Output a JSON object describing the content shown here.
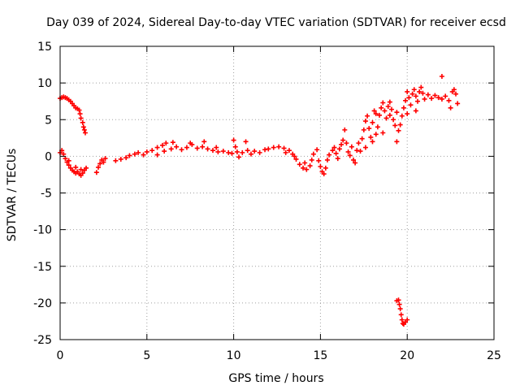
{
  "chart_data": {
    "type": "scatter",
    "title": "Day 039 of 2024, Sidereal Day-to-day VTEC variation (SDTVAR) for receiver ecsd",
    "xlabel": "GPS time / hours",
    "ylabel": "SDTVAR / TECUs",
    "xlim": [
      0,
      25
    ],
    "ylim": [
      -25,
      15
    ],
    "xticks": [
      0,
      5,
      10,
      15,
      20,
      25
    ],
    "yticks": [
      -25,
      -20,
      -15,
      -10,
      -5,
      0,
      5,
      10,
      15
    ],
    "grid": true,
    "marker": "+",
    "series": [
      {
        "name": "SDTVAR",
        "color": "#ff0000",
        "points": [
          [
            0.0,
            7.9
          ],
          [
            0.1,
            8.0
          ],
          [
            0.2,
            8.1
          ],
          [
            0.3,
            8.0
          ],
          [
            0.4,
            7.9
          ],
          [
            0.5,
            7.7
          ],
          [
            0.6,
            7.5
          ],
          [
            0.7,
            7.2
          ],
          [
            0.8,
            6.9
          ],
          [
            0.9,
            6.6
          ],
          [
            1.0,
            6.5
          ],
          [
            1.1,
            6.3
          ],
          [
            1.15,
            5.8
          ],
          [
            1.2,
            5.2
          ],
          [
            1.3,
            4.6
          ],
          [
            1.35,
            4.0
          ],
          [
            1.4,
            3.6
          ],
          [
            1.45,
            3.2
          ],
          [
            0.0,
            0.5
          ],
          [
            0.1,
            0.8
          ],
          [
            0.2,
            0.3
          ],
          [
            0.3,
            -0.3
          ],
          [
            0.4,
            -0.8
          ],
          [
            0.5,
            -1.2
          ],
          [
            0.6,
            -1.6
          ],
          [
            0.7,
            -1.9
          ],
          [
            0.8,
            -2.1
          ],
          [
            0.9,
            -2.3
          ],
          [
            1.0,
            -2.1
          ],
          [
            1.1,
            -2.4
          ],
          [
            1.2,
            -2.6
          ],
          [
            1.3,
            -2.3
          ],
          [
            1.4,
            -1.9
          ],
          [
            1.5,
            -1.6
          ],
          [
            0.5,
            -0.6
          ],
          [
            0.9,
            -1.5
          ],
          [
            1.2,
            -1.8
          ],
          [
            2.1,
            -2.2
          ],
          [
            2.2,
            -1.5
          ],
          [
            2.3,
            -1.0
          ],
          [
            2.4,
            -0.5
          ],
          [
            2.5,
            -0.8
          ],
          [
            2.6,
            -0.3
          ],
          [
            3.2,
            -0.6
          ],
          [
            3.5,
            -0.4
          ],
          [
            3.8,
            -0.2
          ],
          [
            4.0,
            0.1
          ],
          [
            4.3,
            0.3
          ],
          [
            4.5,
            0.5
          ],
          [
            4.8,
            0.2
          ],
          [
            5.0,
            0.6
          ],
          [
            5.3,
            0.8
          ],
          [
            5.6,
            1.2
          ],
          [
            5.9,
            1.5
          ],
          [
            6.1,
            1.8
          ],
          [
            6.4,
            1.0
          ],
          [
            6.7,
            1.3
          ],
          [
            7.0,
            0.9
          ],
          [
            7.3,
            1.2
          ],
          [
            7.6,
            1.6
          ],
          [
            7.9,
            1.1
          ],
          [
            8.2,
            1.3
          ],
          [
            8.5,
            1.0
          ],
          [
            8.8,
            0.8
          ],
          [
            9.1,
            0.6
          ],
          [
            9.4,
            0.7
          ],
          [
            9.7,
            0.5
          ],
          [
            5.6,
            0.2
          ],
          [
            6.0,
            0.7
          ],
          [
            6.5,
            1.9
          ],
          [
            7.5,
            1.8
          ],
          [
            8.3,
            2.0
          ],
          [
            9.0,
            1.2
          ],
          [
            9.9,
            0.4
          ],
          [
            10.0,
            2.2
          ],
          [
            10.1,
            1.3
          ],
          [
            10.2,
            0.6
          ],
          [
            10.3,
            -0.1
          ],
          [
            10.5,
            0.5
          ],
          [
            10.7,
            2.0
          ],
          [
            10.8,
            0.8
          ],
          [
            11.0,
            0.3
          ],
          [
            11.2,
            0.7
          ],
          [
            11.5,
            0.5
          ],
          [
            11.8,
            0.9
          ],
          [
            12.0,
            1.0
          ],
          [
            12.3,
            1.2
          ],
          [
            12.6,
            1.3
          ],
          [
            12.9,
            1.1
          ],
          [
            13.2,
            0.8
          ],
          [
            13.4,
            0.3
          ],
          [
            13.6,
            -0.4
          ],
          [
            13.8,
            -1.1
          ],
          [
            14.0,
            -1.6
          ],
          [
            14.2,
            -1.8
          ],
          [
            14.4,
            -1.3
          ],
          [
            14.5,
            -0.5
          ],
          [
            14.6,
            0.3
          ],
          [
            14.8,
            0.9
          ],
          [
            14.9,
            -0.6
          ],
          [
            15.0,
            -1.4
          ],
          [
            15.1,
            -2.1
          ],
          [
            15.2,
            -2.4
          ],
          [
            15.3,
            -1.6
          ],
          [
            15.4,
            -0.5
          ],
          [
            15.5,
            0.2
          ],
          [
            13.0,
            0.5
          ],
          [
            13.5,
            0.0
          ],
          [
            14.1,
            -0.9
          ],
          [
            15.7,
            0.8
          ],
          [
            15.8,
            1.2
          ],
          [
            15.9,
            0.4
          ],
          [
            16.0,
            -0.3
          ],
          [
            16.1,
            1.0
          ],
          [
            16.2,
            1.6
          ],
          [
            16.3,
            2.2
          ],
          [
            16.4,
            3.6
          ],
          [
            16.5,
            1.8
          ],
          [
            16.6,
            0.6
          ],
          [
            16.7,
            0.1
          ],
          [
            16.8,
            1.3
          ],
          [
            16.9,
            -0.5
          ],
          [
            17.0,
            -0.9
          ],
          [
            17.1,
            0.8
          ],
          [
            17.2,
            1.8
          ],
          [
            17.3,
            0.7
          ],
          [
            17.4,
            2.4
          ],
          [
            17.5,
            3.6
          ],
          [
            17.6,
            4.8
          ],
          [
            17.7,
            5.5
          ],
          [
            17.8,
            3.8
          ],
          [
            17.9,
            2.6
          ],
          [
            18.0,
            4.6
          ],
          [
            18.1,
            6.2
          ],
          [
            18.2,
            5.8
          ],
          [
            18.3,
            4.0
          ],
          [
            18.4,
            5.6
          ],
          [
            18.5,
            6.6
          ],
          [
            18.6,
            7.3
          ],
          [
            18.7,
            6.2
          ],
          [
            18.8,
            5.2
          ],
          [
            18.9,
            6.8
          ],
          [
            19.0,
            7.4
          ],
          [
            19.1,
            6.4
          ],
          [
            19.2,
            5.0
          ],
          [
            19.3,
            4.2
          ],
          [
            19.4,
            2.0
          ],
          [
            19.5,
            3.5
          ],
          [
            19.6,
            4.3
          ],
          [
            19.7,
            5.5
          ],
          [
            19.8,
            6.6
          ],
          [
            19.9,
            7.6
          ],
          [
            20.0,
            8.8
          ],
          [
            20.1,
            8.0
          ],
          [
            20.2,
            7.0
          ],
          [
            20.3,
            8.5
          ],
          [
            20.4,
            9.1
          ],
          [
            20.5,
            8.2
          ],
          [
            20.6,
            7.5
          ],
          [
            20.7,
            8.8
          ],
          [
            20.8,
            9.4
          ],
          [
            20.9,
            8.6
          ],
          [
            21.0,
            7.8
          ],
          [
            21.2,
            8.4
          ],
          [
            21.4,
            7.9
          ],
          [
            21.6,
            8.3
          ],
          [
            21.8,
            8.0
          ],
          [
            22.0,
            7.8
          ],
          [
            22.2,
            8.2
          ],
          [
            22.4,
            7.6
          ],
          [
            22.6,
            8.8
          ],
          [
            22.7,
            9.1
          ],
          [
            22.8,
            8.5
          ],
          [
            22.9,
            7.2
          ],
          [
            22.5,
            6.6
          ],
          [
            22.0,
            10.9
          ],
          [
            17.6,
            1.2
          ],
          [
            18.0,
            2.0
          ],
          [
            18.6,
            3.2
          ],
          [
            19.0,
            5.6
          ],
          [
            19.4,
            6.0
          ],
          [
            20.0,
            5.8
          ],
          [
            20.5,
            6.2
          ],
          [
            18.2,
            3.0
          ],
          [
            19.4,
            -19.7
          ],
          [
            19.5,
            -19.6
          ],
          [
            19.55,
            -20.2
          ],
          [
            19.6,
            -20.8
          ],
          [
            19.65,
            -21.6
          ],
          [
            19.7,
            -22.3
          ],
          [
            19.75,
            -22.8
          ],
          [
            19.8,
            -22.9
          ],
          [
            19.9,
            -22.6
          ],
          [
            20.0,
            -22.3
          ]
        ]
      }
    ]
  }
}
